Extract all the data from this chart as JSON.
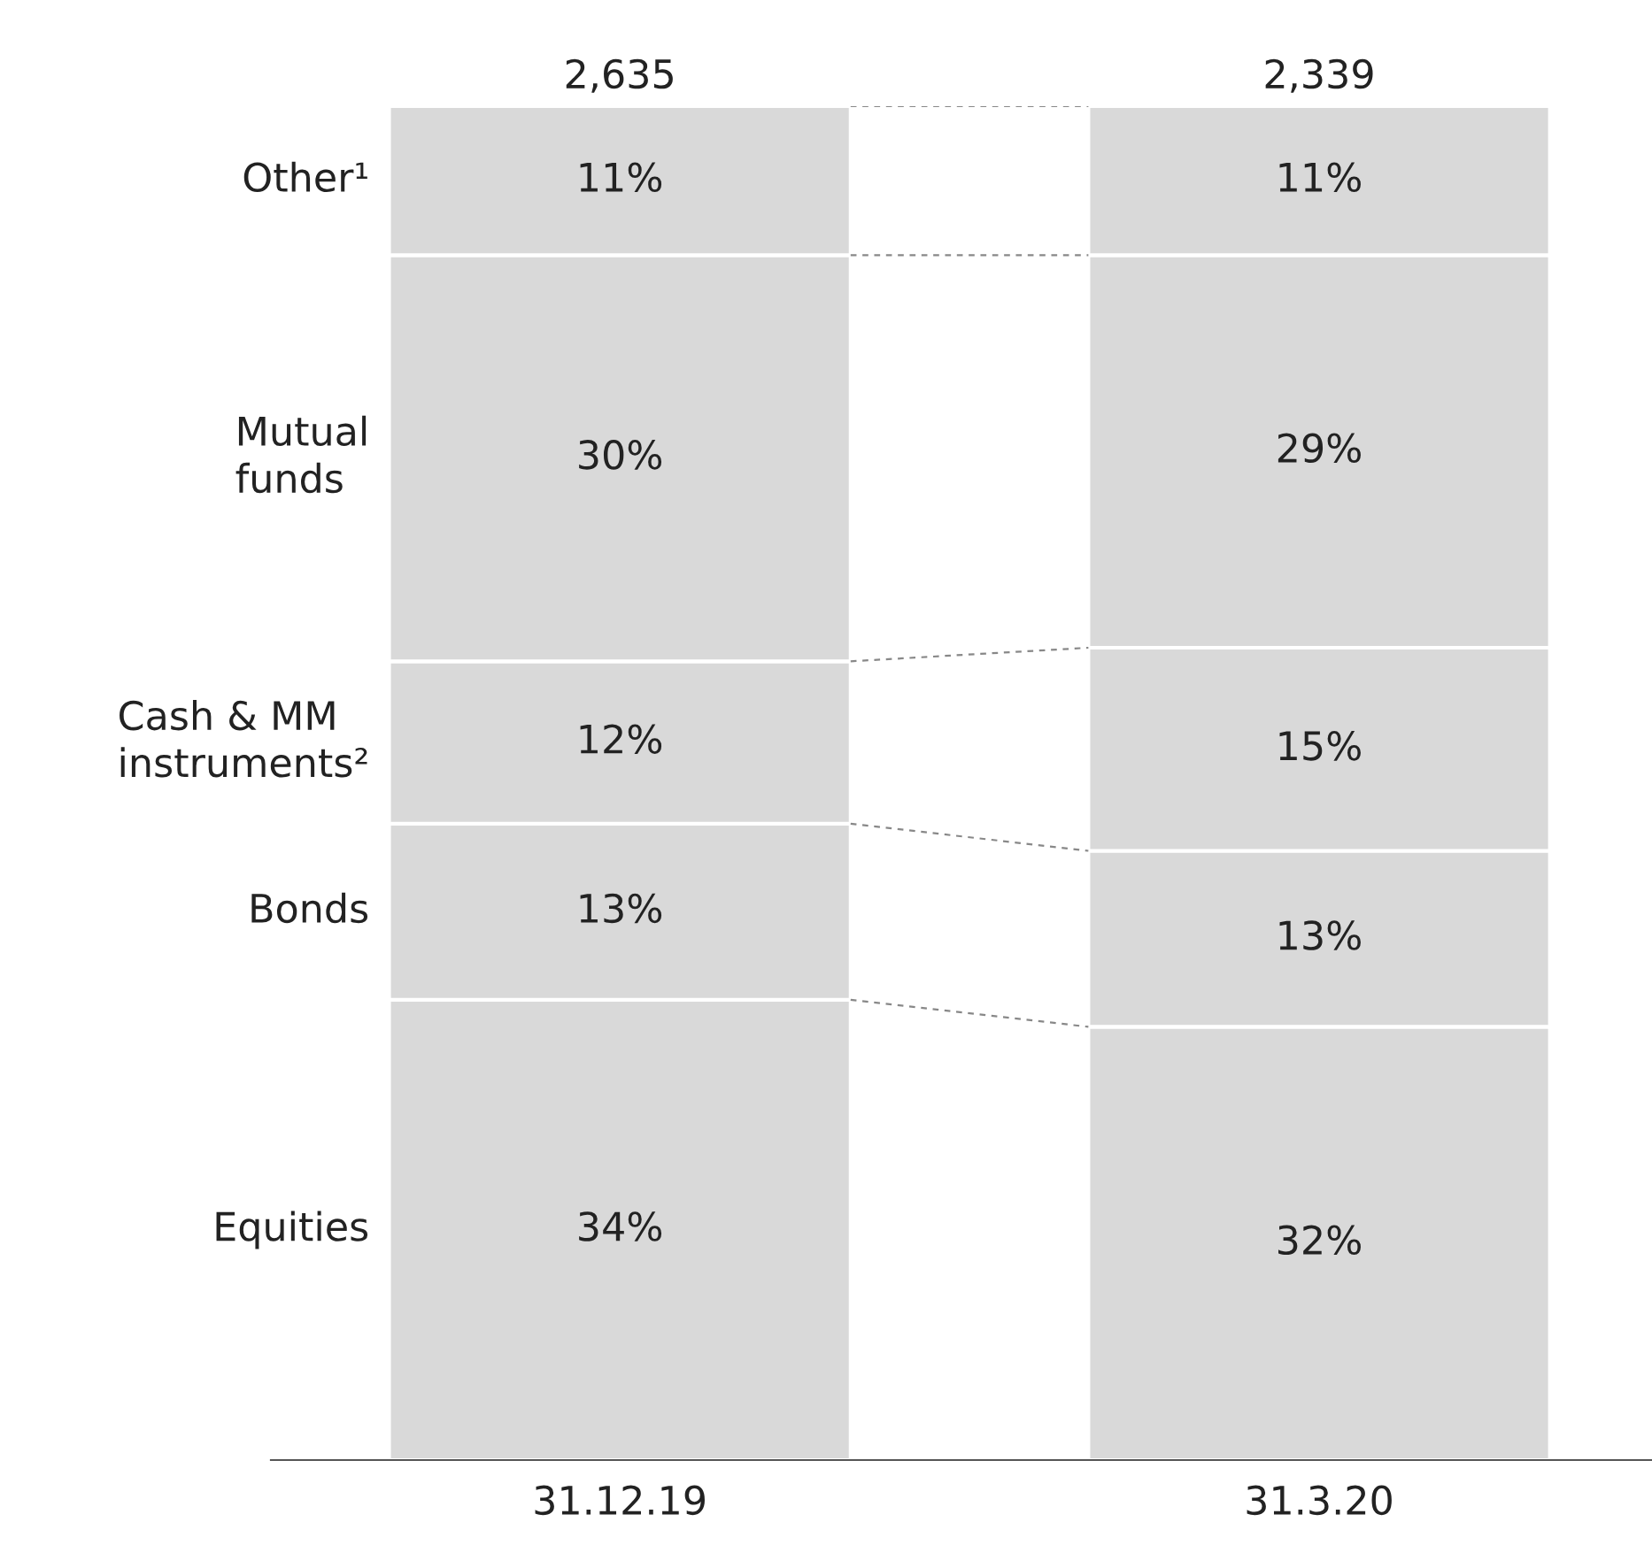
{
  "chart_data": {
    "type": "bar",
    "stacked": true,
    "categories": [
      "31.12.19",
      "31.3.20"
    ],
    "series": [
      {
        "name": "Equities",
        "color": "#d9d9d9",
        "values": [
          34,
          32
        ],
        "value_labels": [
          "34%",
          "32%"
        ]
      },
      {
        "name": "Bonds",
        "color": "#d9d9d9",
        "values": [
          13,
          13
        ],
        "value_labels": [
          "13%",
          "13%"
        ]
      },
      {
        "name": "Cash & MM\ninstruments²",
        "color": "#d9d9d9",
        "values": [
          12,
          15
        ],
        "value_labels": [
          "12%",
          "15%"
        ]
      },
      {
        "name": "Mutual\nfunds",
        "color": "#d9d9d9",
        "values": [
          30,
          29
        ],
        "value_labels": [
          "30%",
          "29%"
        ]
      },
      {
        "name": "Other¹",
        "color": "#d9d9d9",
        "values": [
          11,
          11
        ],
        "value_labels": [
          "11%",
          "11%"
        ]
      }
    ],
    "annotations": [
      {
        "text": "2,635",
        "x": "31.12.19",
        "y": 100
      },
      {
        "text": "2,339",
        "x": "31.3.20",
        "y": 100
      }
    ]
  }
}
